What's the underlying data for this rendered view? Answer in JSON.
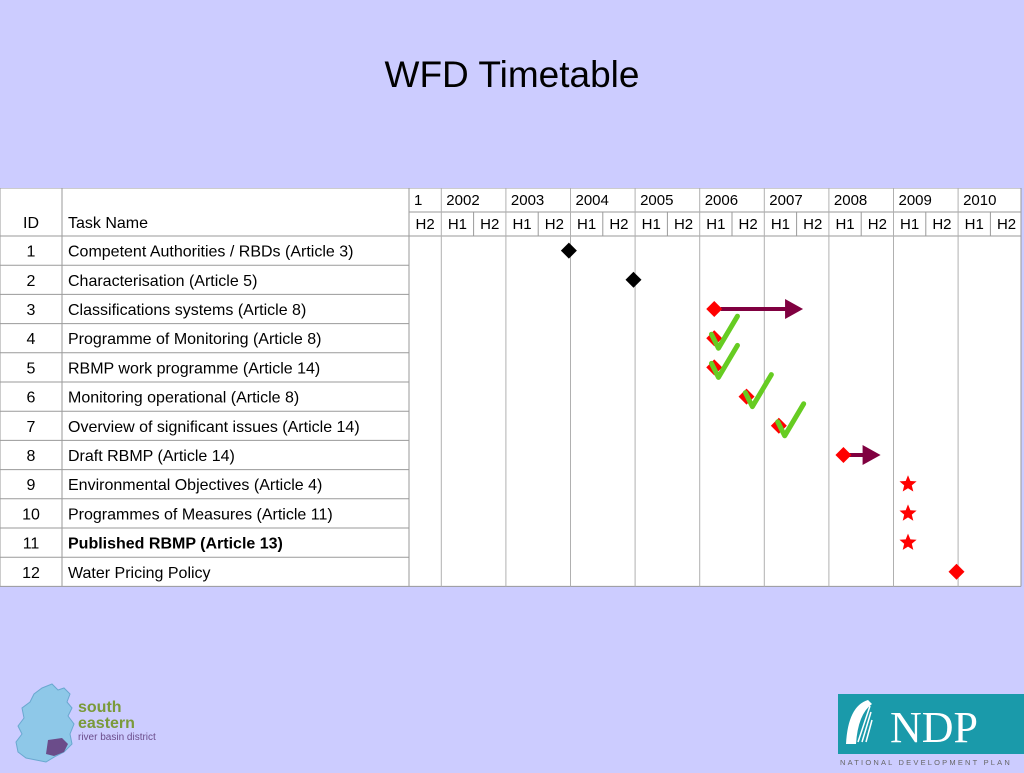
{
  "slide": {
    "title": "WFD Timetable"
  },
  "gantt": {
    "headers": {
      "id": "ID",
      "task": "Task Name"
    },
    "years": [
      "1",
      "2002",
      "2003",
      "2004",
      "2005",
      "2006",
      "2007",
      "2008",
      "2009",
      "2010"
    ],
    "halves": [
      "H2",
      "H1",
      "H2",
      "H1",
      "H2",
      "H1",
      "H2",
      "H1",
      "H2",
      "H1",
      "H2",
      "H1",
      "H2",
      "H1",
      "H2",
      "H1",
      "H2",
      "H1",
      "H2"
    ],
    "tasks": [
      {
        "id": "1",
        "name": "Competent Authorities / RBDs (Article 3)",
        "bold": false
      },
      {
        "id": "2",
        "name": "Characterisation (Article 5)",
        "bold": false
      },
      {
        "id": "3",
        "name": "Classifications systems (Article 8)",
        "bold": false
      },
      {
        "id": "4",
        "name": "Programme of Monitoring (Article 8)",
        "bold": false
      },
      {
        "id": "5",
        "name": "RBMP work programme (Article 14)",
        "bold": false
      },
      {
        "id": "6",
        "name": "Monitoring operational (Article 8)",
        "bold": false
      },
      {
        "id": "7",
        "name": "Overview of significant issues (Article 14)",
        "bold": false
      },
      {
        "id": "8",
        "name": "Draft RBMP (Article 14)",
        "bold": false
      },
      {
        "id": "9",
        "name": "Environmental Objectives (Article 4)",
        "bold": false
      },
      {
        "id": "10",
        "name": "Programmes of Measures (Article 11)",
        "bold": false
      },
      {
        "id": "11",
        "name": "Published RBMP (Article 13)",
        "bold": true
      },
      {
        "id": "12",
        "name": "Water Pricing Policy",
        "bold": false
      }
    ],
    "markers": [
      {
        "row": 0,
        "type": "diamond",
        "color": "#000000",
        "x": 4.95
      },
      {
        "row": 1,
        "type": "diamond",
        "color": "#000000",
        "x": 6.95
      },
      {
        "row": 2,
        "type": "diamond",
        "color": "#ff0000",
        "x": 9.45
      },
      {
        "row": 3,
        "type": "diamond",
        "color": "#ff0000",
        "x": 9.45
      },
      {
        "row": 4,
        "type": "diamond",
        "color": "#ff0000",
        "x": 9.45
      },
      {
        "row": 5,
        "type": "diamond",
        "color": "#ff0000",
        "x": 10.45
      },
      {
        "row": 6,
        "type": "diamond",
        "color": "#ff0000",
        "x": 11.45
      },
      {
        "row": 7,
        "type": "diamond",
        "color": "#ff0000",
        "x": 13.45
      },
      {
        "row": 8,
        "type": "star",
        "color": "#ff0000",
        "x": 15.45
      },
      {
        "row": 9,
        "type": "star",
        "color": "#ff0000",
        "x": 15.45
      },
      {
        "row": 10,
        "type": "star",
        "color": "#ff0000",
        "x": 15.45
      },
      {
        "row": 11,
        "type": "diamond",
        "color": "#ff0000",
        "x": 16.95
      }
    ],
    "arrows": [
      {
        "row": 2,
        "from": 9.65,
        "to": 12.2,
        "color": "#800040"
      },
      {
        "row": 7,
        "from": 13.6,
        "to": 14.6,
        "color": "#800040"
      }
    ],
    "checks": [
      {
        "row": 3,
        "x": 9.55,
        "color": "#66cc22"
      },
      {
        "row": 4,
        "x": 9.55,
        "color": "#66cc22"
      },
      {
        "row": 5,
        "x": 10.6,
        "color": "#66cc22"
      },
      {
        "row": 6,
        "x": 11.6,
        "color": "#66cc22"
      }
    ]
  },
  "logos": {
    "left": {
      "line1": "south",
      "line2": "eastern",
      "line3": "river basin district"
    },
    "right": {
      "mark": "NDP",
      "tagline": "NATIONAL DEVELOPMENT PLAN"
    }
  }
}
